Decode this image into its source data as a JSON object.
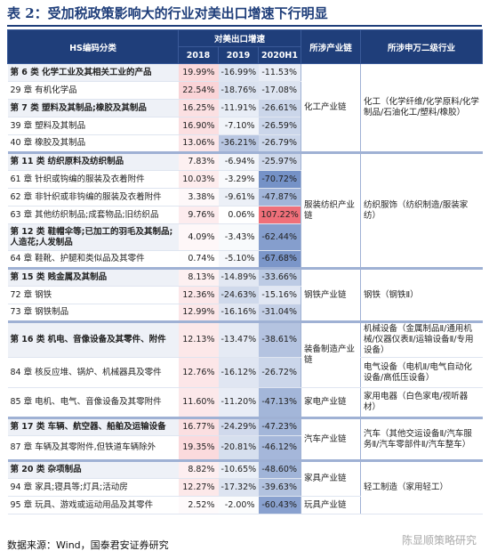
{
  "title": "表 2：受加税政策影响大的行业对美出口增速下行明显",
  "table": {
    "header": {
      "hs": "HS编码分类",
      "growth": "对美出口增速",
      "years": [
        "2018",
        "2019",
        "2020H1"
      ],
      "chain": "所涉产业链",
      "industry": "所涉申万二级行业"
    },
    "rows": [
      [
        "第 6 类 化学工业及其相关工业的产品",
        "19.99%",
        "-16.99%",
        "-11.53%"
      ],
      [
        "29 章 有机化学品",
        "22.54%",
        "-18.76%",
        "-17.08%"
      ],
      [
        "第 7 类 塑料及其制品;橡胶及其制品",
        "16.25%",
        "-11.91%",
        "-26.61%"
      ],
      [
        "39 章 塑料及其制品",
        "16.90%",
        "-7.10%",
        "-26.59%"
      ],
      [
        "40 章 橡胶及其制品",
        "13.06%",
        "-36.21%",
        "-26.79%"
      ],
      [
        "第 11 类 纺织原料及纺织制品",
        "7.83%",
        "-6.94%",
        "-25.97%"
      ],
      [
        "61 章 针织或钩编的服装及衣着附件",
        "10.03%",
        "-3.29%",
        "-70.72%"
      ],
      [
        "62 章 非针织或非钩编的服装及衣着附件",
        "3.38%",
        "-9.61%",
        "-47.87%"
      ],
      [
        "63 章 其他纺织制品;成套物品;旧纺织品",
        "9.76%",
        "0.06%",
        "107.22%"
      ],
      [
        "第 12 类 鞋帽伞等;已加工的羽毛及其制品;人造花;人发制品",
        "4.09%",
        "-3.43%",
        "-62.44%"
      ],
      [
        "64 章 鞋靴、护腿和类似品及其零件",
        "0.74%",
        "-5.10%",
        "-67.68%"
      ],
      [
        "第 15 类 贱金属及其制品",
        "8.13%",
        "-14.89%",
        "-33.66%"
      ],
      [
        "72 章 钢铁",
        "12.36%",
        "-24.63%",
        "-15.16%"
      ],
      [
        "73 章 钢铁制品",
        "12.99%",
        "-16.16%",
        "-31.04%"
      ],
      [
        "第 16 类 机电、音像设备及其零件、附件",
        "12.13%",
        "-13.47%",
        "-38.61%"
      ],
      [
        "84 章 核反应堆、锅炉、机械器具及零件",
        "12.76%",
        "-16.12%",
        "-26.72%"
      ],
      [
        "85 章 电机、电气、音像设备及其零附件",
        "11.60%",
        "-11.20%",
        "-47.13%"
      ],
      [
        "第 17 类 车辆、航空器、船舶及运输设备",
        "16.77%",
        "-24.29%",
        "-47.23%"
      ],
      [
        "87 章 车辆及其零附件,但铁道车辆除外",
        "19.35%",
        "-20.81%",
        "-46.12%"
      ],
      [
        "第 20 类 杂项制品",
        "8.82%",
        "-10.65%",
        "-48.60%"
      ],
      [
        "94 章 家具;寝具等;灯具;活动房",
        "12.27%",
        "-17.32%",
        "-39.63%"
      ],
      [
        "95 章 玩具、游戏或运动用品及其零件",
        "2.52%",
        "-2.00%",
        "-60.43%"
      ]
    ],
    "chains": [
      "化工产业链",
      "服装纺织产业链",
      "钢铁产业链",
      "装备制造产业链",
      "家电产业链",
      "汽车产业链",
      "家具产业链",
      "玩具产业链"
    ],
    "industries": [
      "化工（化学纤维/化学原料/化学制品/石油化工/塑料/橡胶）",
      "纺织服饰（纺织制造/服装家纺）",
      "钢铁（钢铁Ⅱ）",
      "机械设备（金属制品Ⅱ/通用机械/仪器仪表Ⅱ/运输设备Ⅱ/专用设备）",
      "电气设备（电机Ⅱ/电气自动化设备/高低压设备）",
      "家用电器（白色家电/视听器材）",
      "汽车（其他交运设备Ⅱ/汽车服务Ⅱ/汽车零部件Ⅱ/汽车整车）",
      "轻工制造（家用轻工）"
    ]
  },
  "source": "数据来源：Wind，国泰君安证券研究",
  "watermark": "陈显顺策略研究"
}
